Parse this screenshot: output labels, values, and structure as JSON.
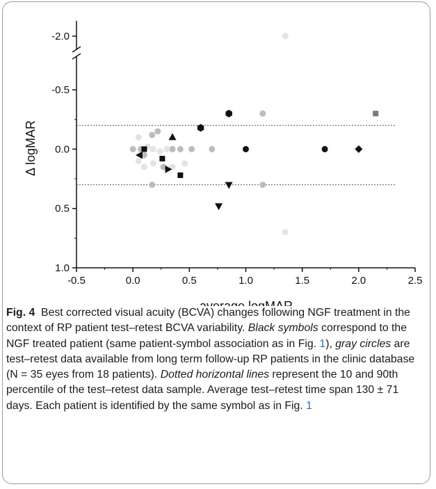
{
  "chart_data": {
    "type": "scatter",
    "title": "",
    "xlabel": "average logMAR",
    "ylabel": "Δ logMAR",
    "xlim": [
      -0.5,
      2.5
    ],
    "xticks": [
      -0.5,
      0.0,
      0.5,
      1.0,
      1.5,
      2.0,
      2.5
    ],
    "xtick_labels": [
      "-0.5",
      "0.0",
      "0.5",
      "1.0",
      "1.5",
      "2.0",
      "2.5"
    ],
    "ylim": [
      -0.7,
      1.0
    ],
    "y_axis_inverted": true,
    "y_axis_break": {
      "lower_segment_top": -0.7,
      "upper_segment_value": -2.0
    },
    "yticks": [
      -2.0,
      -0.5,
      0.0,
      0.5,
      1.0
    ],
    "ytick_labels": [
      "-2.0",
      "-0.5",
      "0.0",
      "0.5",
      "1.0"
    ],
    "reference_lines": [
      {
        "y": -0.2,
        "style": "dotted"
      },
      {
        "y": 0.3,
        "style": "dotted"
      }
    ],
    "series": [
      {
        "marker": "circle",
        "color": "#bcbcbc",
        "points": [
          [
            1.15,
            -0.3
          ],
          [
            0.0,
            0.0
          ],
          [
            0.07,
            0.0
          ],
          [
            0.17,
            -0.12
          ],
          [
            0.22,
            -0.15
          ],
          [
            0.42,
            0.0
          ],
          [
            0.52,
            0.0
          ],
          [
            0.7,
            0.0
          ],
          [
            0.1,
            0.05
          ],
          [
            0.27,
            0.15
          ],
          [
            0.17,
            0.3
          ],
          [
            1.15,
            0.3
          ],
          [
            0.35,
            0.0
          ]
        ]
      },
      {
        "marker": "circle",
        "color": "#e3e3e3",
        "points": [
          [
            1.35,
            -1.95
          ],
          [
            0.05,
            -0.1
          ],
          [
            0.13,
            -0.02
          ],
          [
            0.3,
            0.0
          ],
          [
            0.18,
            0.0
          ],
          [
            0.24,
            0.02
          ],
          [
            0.05,
            0.1
          ],
          [
            0.1,
            0.15
          ],
          [
            0.18,
            0.12
          ],
          [
            0.35,
            0.15
          ],
          [
            0.46,
            0.12
          ],
          [
            1.35,
            0.7
          ]
        ]
      },
      {
        "marker": "circle",
        "color": "#111111",
        "points": [
          [
            1.0,
            0.0
          ],
          [
            1.7,
            0.0
          ],
          [
            0.85,
            -0.3
          ]
        ]
      },
      {
        "marker": "diamond",
        "color": "#111111",
        "points": [
          [
            2.0,
            0.0
          ]
        ]
      },
      {
        "marker": "hexagon",
        "color": "#111111",
        "points": [
          [
            0.6,
            -0.18
          ],
          [
            0.85,
            -0.3
          ]
        ]
      },
      {
        "marker": "triangle-up",
        "color": "#111111",
        "points": [
          [
            0.35,
            -0.1
          ]
        ]
      },
      {
        "marker": "triangle-down",
        "color": "#111111",
        "points": [
          [
            0.85,
            0.3
          ],
          [
            0.76,
            0.48
          ]
        ]
      },
      {
        "marker": "triangle-left",
        "color": "#111111",
        "points": [
          [
            0.06,
            0.05
          ]
        ]
      },
      {
        "marker": "triangle-right",
        "color": "#111111",
        "points": [
          [
            0.31,
            0.17
          ]
        ]
      },
      {
        "marker": "square",
        "color": "#111111",
        "points": [
          [
            0.1,
            0.0
          ],
          [
            0.26,
            0.08
          ],
          [
            0.42,
            0.22
          ]
        ]
      },
      {
        "marker": "square",
        "color": "#7a7a7a",
        "points": [
          [
            2.15,
            -0.3
          ]
        ]
      }
    ]
  },
  "caption": {
    "label": "Fig. 4",
    "text1": "Best corrected visual acuity (BCVA) changes following NGF treatment in the context of RP patient test–retest BCVA variability. ",
    "ital1": "Black symbols",
    "text2": " correspond to the NGF treated patient (same patient-symbol association as in Fig. ",
    "ref1": "1",
    "text3": "), ",
    "ital2": "gray circles",
    "text4": " are test–retest data available from long term follow-up RP patients in the clinic database (N = 35 eyes from 18 patients). ",
    "ital3": "Dotted horizontal lines",
    "text5": " represent the 10 and 90th percentile of the test–retest data sample. Average test–retest time span 130 ± 71 days. Each patient is identified by the same symbol as in Fig. ",
    "ref2": "1"
  }
}
